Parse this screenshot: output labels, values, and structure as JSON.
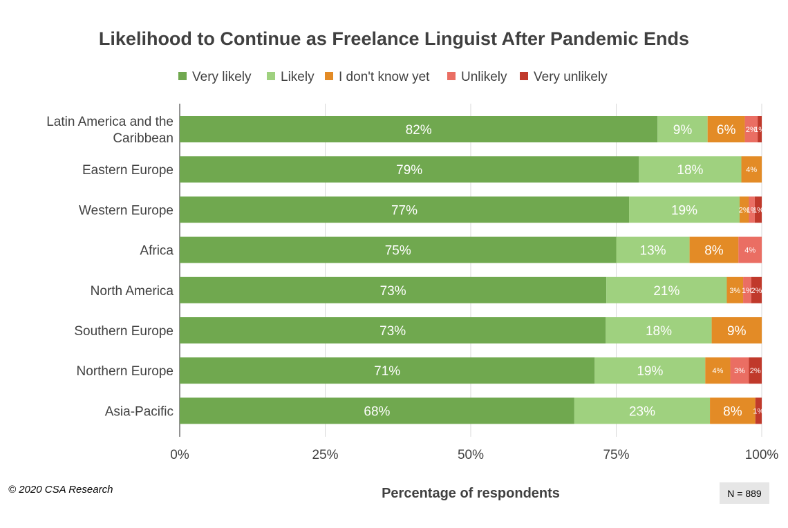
{
  "chart_data": {
    "type": "bar",
    "orientation": "horizontal",
    "stacked": true,
    "title": "Likelihood to Continue as Freelance Linguist After Pandemic Ends",
    "xlabel": "Percentage of respondents",
    "ylabel": "",
    "xlim": [
      0,
      100
    ],
    "x_ticks": [
      "0%",
      "25%",
      "50%",
      "75%",
      "100%"
    ],
    "grid": "vertical",
    "legend_position": "top",
    "categories": [
      [
        "Latin America and the",
        "Caribbean"
      ],
      [
        "Eastern Europe"
      ],
      [
        "Western Europe"
      ],
      [
        "Africa"
      ],
      [
        "North America"
      ],
      [
        "Southern Europe"
      ],
      [
        "Northern Europe"
      ],
      [
        "Asia-Pacific"
      ]
    ],
    "series": [
      {
        "name": "Very likely",
        "color": "#70a84f",
        "values": [
          82.1,
          78.9,
          77.2,
          75,
          73.3,
          73.2,
          71.3,
          67.8
        ],
        "labels": [
          "82%",
          "79%",
          "77%",
          "75%",
          "73%",
          "73%",
          "71%",
          "68%"
        ]
      },
      {
        "name": "Likely",
        "color": "#9fd17f",
        "values": [
          8.6,
          17.6,
          19,
          12.6,
          20.7,
          18.2,
          19,
          23.3
        ],
        "labels": [
          "9%",
          "18%",
          "19%",
          "13%",
          "21%",
          "18%",
          "19%",
          "23%"
        ]
      },
      {
        "name": "I don't know yet",
        "color": "#e38b26",
        "values": [
          6.4,
          3.5,
          1.6,
          8.4,
          2.8,
          8.6,
          4.3,
          7.8
        ],
        "labels": [
          "6%",
          "4%",
          "2%",
          "8%",
          "3%",
          "9%",
          "4%",
          "8%"
        ]
      },
      {
        "name": "Unlikely",
        "color": "#ea6e63",
        "values": [
          2.2,
          0,
          1,
          4,
          1.4,
          0,
          3.2,
          0
        ],
        "labels": [
          "2%",
          "",
          "1%",
          "4%",
          "1%",
          "",
          "3%",
          ""
        ]
      },
      {
        "name": "Very unlikely",
        "color": "#c0392b",
        "values": [
          0.7,
          0,
          1.2,
          0,
          1.8,
          0,
          2.2,
          1.1
        ],
        "labels": [
          "1%",
          "",
          "1%",
          "",
          "2%",
          "",
          "2%",
          "1%"
        ]
      }
    ]
  },
  "footer": {
    "copyright": "© 2020 CSA Research",
    "sample_size": "N = 889"
  }
}
